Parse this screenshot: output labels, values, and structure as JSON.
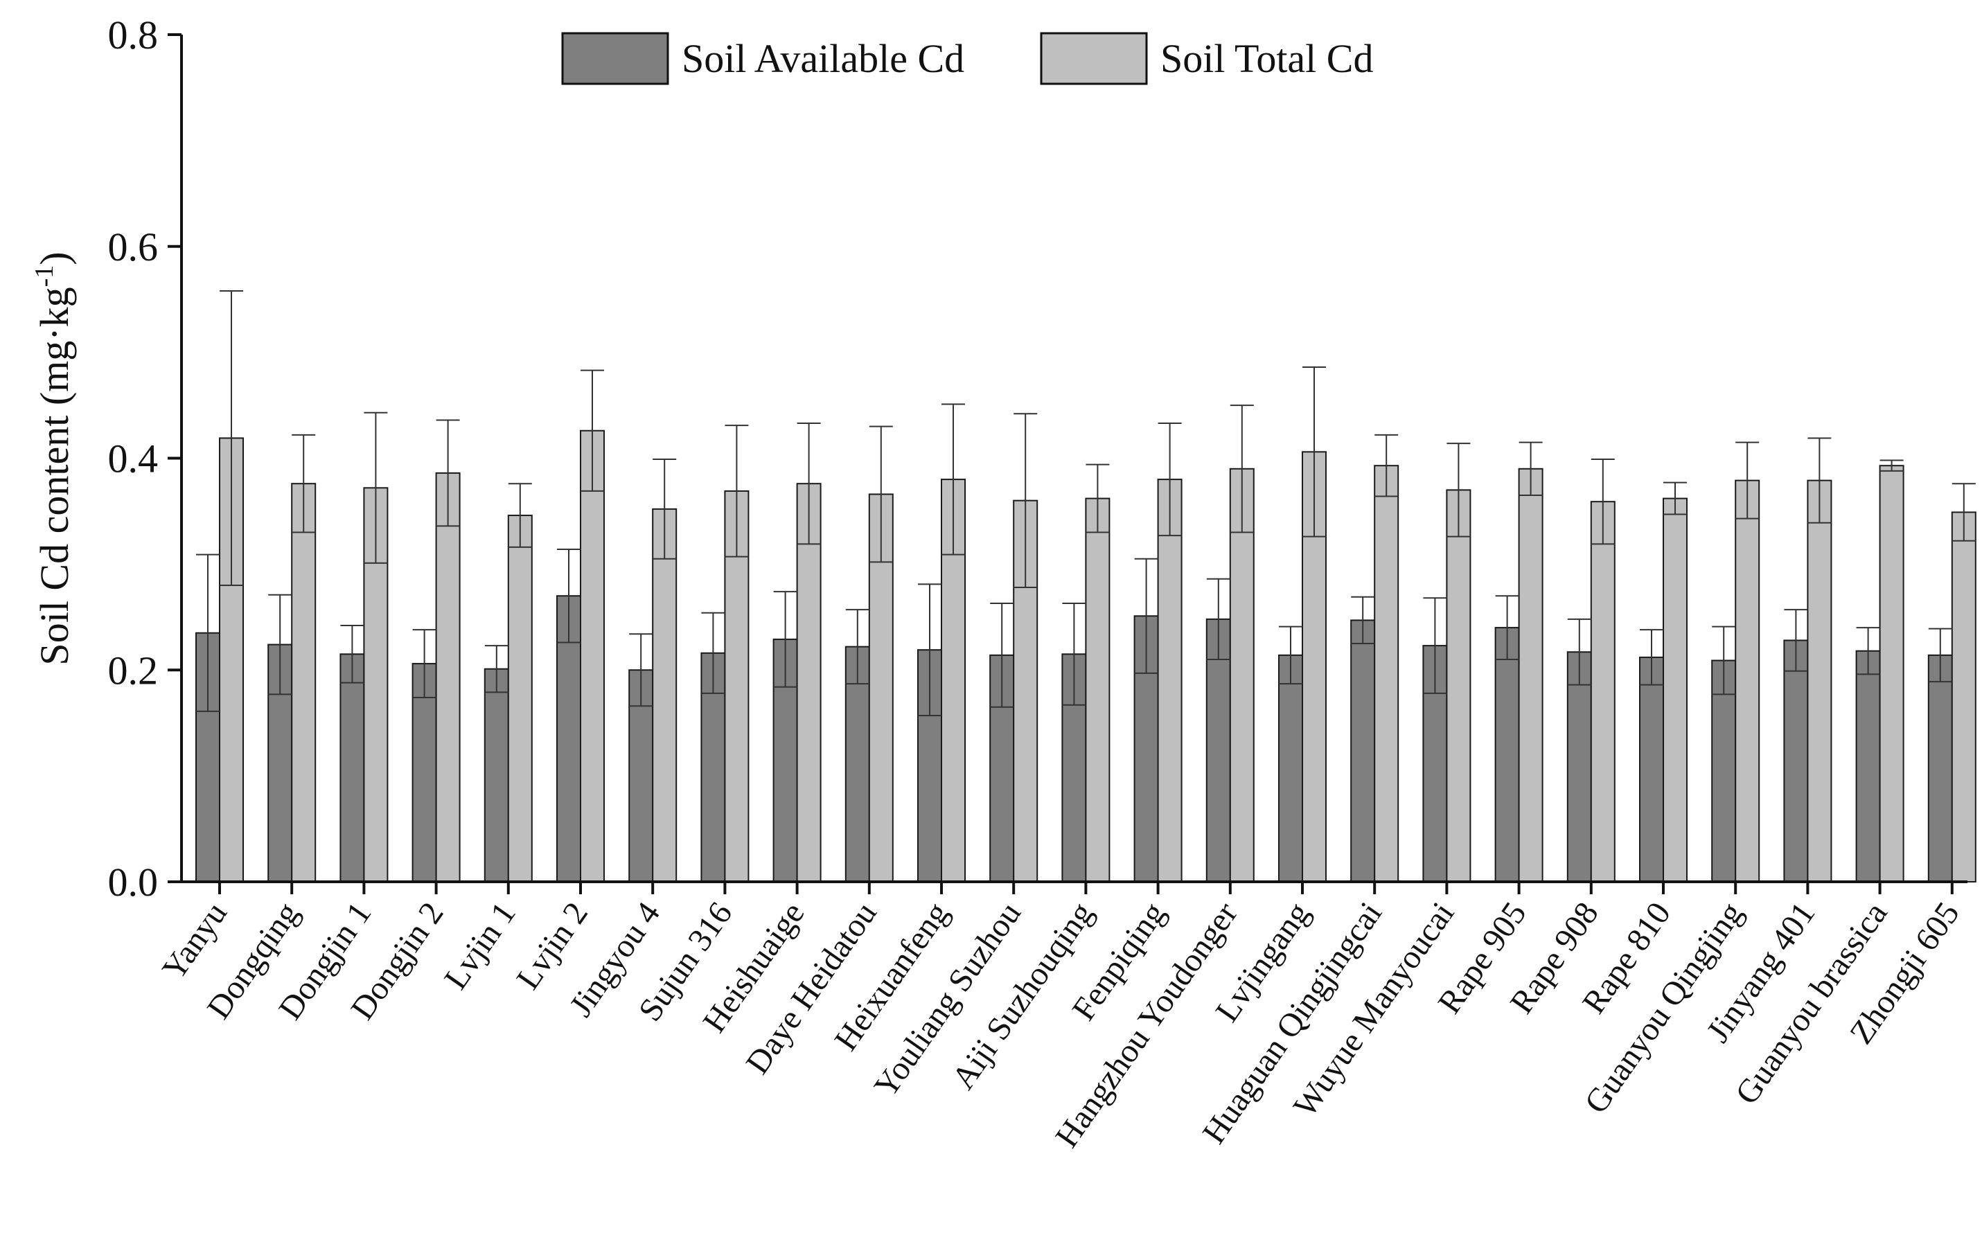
{
  "chart_data": {
    "type": "bar",
    "title": "",
    "xlabel": "",
    "ylabel": "Soil Cd content (mg·kg",
    "ylabel_superscript": "-1",
    "ylabel_suffix": ")",
    "ylim": [
      0,
      0.8
    ],
    "yticks": [
      "0.0",
      "0.2",
      "0.4",
      "0.6",
      "0.8"
    ],
    "grid": false,
    "legend_position": "top-center",
    "categories": [
      "Yanyu",
      "Dongqing",
      "Dongjin 1",
      "Dongjin 2",
      "Lvjin 1",
      "Lvjin 2",
      "Jingyou 4",
      "Sujun 316",
      "Heishuaige",
      "Daye Heidatou",
      "Heixuanfeng",
      "Youliang Suzhou",
      "Aiji Suzhouqing",
      "Fenpiqing",
      "Hangzhou Youdonger",
      "Lvjingang",
      "Huaguan Qingjingcai",
      "Wuyue Manyoucai",
      "Rape 905",
      "Rape 908",
      "Rape 810",
      "Guanyou Qingjing",
      "Jinyang 401",
      "Guanyou brassica",
      "Zhongji 605"
    ],
    "series": [
      {
        "name": "Soil Available Cd",
        "color": "#7f7f7f",
        "values": [
          0.235,
          0.224,
          0.215,
          0.206,
          0.201,
          0.27,
          0.2,
          0.216,
          0.229,
          0.222,
          0.219,
          0.214,
          0.215,
          0.251,
          0.248,
          0.214,
          0.247,
          0.223,
          0.24,
          0.217,
          0.212,
          0.209,
          0.228,
          0.218,
          0.214
        ],
        "error": [
          0.074,
          0.047,
          0.027,
          0.032,
          0.022,
          0.044,
          0.034,
          0.038,
          0.045,
          0.035,
          0.062,
          0.049,
          0.048,
          0.054,
          0.038,
          0.027,
          0.022,
          0.045,
          0.03,
          0.031,
          0.026,
          0.032,
          0.029,
          0.022,
          0.025
        ]
      },
      {
        "name": "Soil Total Cd",
        "color": "#bfbfbf",
        "values": [
          0.419,
          0.376,
          0.372,
          0.386,
          0.346,
          0.426,
          0.352,
          0.369,
          0.376,
          0.366,
          0.38,
          0.36,
          0.362,
          0.38,
          0.39,
          0.406,
          0.393,
          0.37,
          0.39,
          0.359,
          0.362,
          0.379,
          0.379,
          0.393,
          0.349
        ],
        "error": [
          0.139,
          0.046,
          0.071,
          0.05,
          0.03,
          0.057,
          0.047,
          0.062,
          0.057,
          0.064,
          0.071,
          0.082,
          0.032,
          0.053,
          0.06,
          0.08,
          0.029,
          0.044,
          0.025,
          0.04,
          0.015,
          0.036,
          0.04,
          0.005,
          0.027
        ]
      }
    ]
  }
}
